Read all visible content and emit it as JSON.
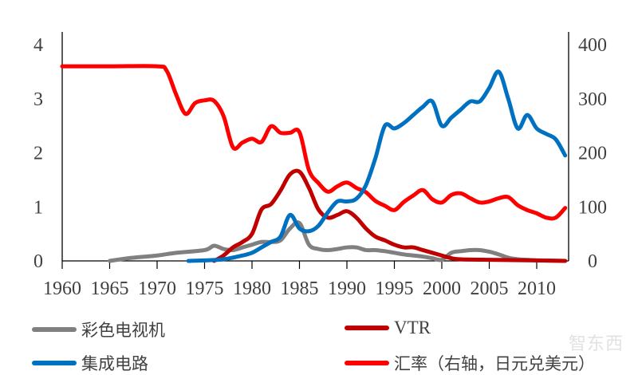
{
  "chart_data": {
    "type": "line",
    "title": "",
    "xlim": [
      1960,
      2014
    ],
    "x_ticks": [
      "1960",
      "1965",
      "1970",
      "1975",
      "1980",
      "1985",
      "1990",
      "1995",
      "2000",
      "2005",
      "2010"
    ],
    "y_left": {
      "lim": [
        0,
        4
      ],
      "ticks": [
        "0",
        "1",
        "2",
        "3",
        "4"
      ]
    },
    "y_right": {
      "lim": [
        0,
        400
      ],
      "ticks": [
        "0",
        "100",
        "200",
        "300",
        "400"
      ]
    },
    "grid": false,
    "legend_position": "bottom",
    "series": [
      {
        "name": "彩色电视机",
        "axis": "left",
        "color": "#808080",
        "x": [
          1965,
          1967,
          1970,
          1972,
          1975,
          1976,
          1977,
          1978,
          1979,
          1980,
          1981,
          1982,
          1983,
          1984,
          1985,
          1986,
          1987,
          1988,
          1989,
          1990,
          1991,
          1992,
          1993,
          1994,
          1995,
          1996,
          1997,
          1998,
          1999,
          2000,
          2001,
          2002,
          2003,
          2004,
          2005,
          2006,
          2007,
          2008,
          2009,
          2010,
          2013
        ],
        "y": [
          0,
          0.05,
          0.1,
          0.15,
          0.2,
          0.28,
          0.22,
          0.2,
          0.25,
          0.3,
          0.35,
          0.35,
          0.38,
          0.6,
          0.7,
          0.3,
          0.22,
          0.2,
          0.22,
          0.25,
          0.25,
          0.2,
          0.2,
          0.18,
          0.15,
          0.12,
          0.1,
          0.08,
          0.05,
          0.02,
          0.15,
          0.18,
          0.2,
          0.2,
          0.17,
          0.12,
          0.06,
          0.03,
          0.02,
          0.01,
          0
        ]
      },
      {
        "name": "VTR",
        "axis": "left",
        "color": "#c00000",
        "x": [
          1976,
          1977,
          1978,
          1979,
          1980,
          1981,
          1982,
          1983,
          1984,
          1985,
          1986,
          1987,
          1988,
          1989,
          1990,
          1991,
          1992,
          1993,
          1994,
          1995,
          1996,
          1997,
          1998,
          1999,
          2000,
          2001,
          2002,
          2005,
          2010,
          2013
        ],
        "y": [
          0,
          0.1,
          0.25,
          0.35,
          0.5,
          0.95,
          1.05,
          1.3,
          1.6,
          1.65,
          1.35,
          0.95,
          0.8,
          0.85,
          0.92,
          0.8,
          0.6,
          0.45,
          0.38,
          0.3,
          0.25,
          0.25,
          0.2,
          0.15,
          0.1,
          0.05,
          0.03,
          0.02,
          0.01,
          0
        ]
      },
      {
        "name": "集成电路",
        "axis": "left",
        "color": "#0070c0",
        "x": [
          1973.3,
          1975,
          1977,
          1979,
          1980,
          1981,
          1982,
          1983,
          1984,
          1985,
          1986,
          1987,
          1988,
          1989,
          1990,
          1991,
          1992,
          1993,
          1994,
          1995,
          1996,
          1997,
          1998,
          1999,
          2000,
          2001,
          2002,
          2003,
          2004,
          2005,
          2006,
          2007,
          2008,
          2009,
          2010,
          2011,
          2012,
          2013
        ],
        "y": [
          0,
          0.01,
          0.03,
          0.1,
          0.15,
          0.25,
          0.35,
          0.45,
          0.85,
          0.6,
          0.55,
          0.65,
          0.9,
          1.1,
          1.1,
          1.15,
          1.4,
          1.9,
          2.5,
          2.45,
          2.55,
          2.7,
          2.85,
          2.95,
          2.5,
          2.65,
          2.8,
          2.95,
          2.95,
          3.2,
          3.5,
          3.0,
          2.45,
          2.7,
          2.45,
          2.35,
          2.25,
          1.95
        ]
      },
      {
        "name": "汇率（右轴，日元兑美元）",
        "axis": "right",
        "color": "#ff0000",
        "x": [
          1960,
          1965,
          1970,
          1971,
          1972,
          1973,
          1974,
          1975,
          1976,
          1977,
          1978,
          1979,
          1980,
          1981,
          1982,
          1983,
          1984,
          1985,
          1986,
          1987,
          1988,
          1989,
          1990,
          1991,
          1992,
          1993,
          1994,
          1995,
          1996,
          1997,
          1998,
          1999,
          2000,
          2001,
          2002,
          2003,
          2004,
          2005,
          2006,
          2007,
          2008,
          2009,
          2010,
          2011,
          2012,
          2013
        ],
        "y": [
          360,
          360,
          360,
          352,
          308,
          272,
          292,
          297,
          296,
          268,
          210,
          219,
          226,
          220,
          249,
          237,
          237,
          238,
          168,
          144,
          128,
          138,
          145,
          135,
          127,
          111,
          102,
          94,
          109,
          121,
          131,
          114,
          108,
          122,
          125,
          116,
          108,
          110,
          116,
          118,
          103,
          94,
          88,
          80,
          80,
          98
        ]
      }
    ]
  },
  "watermark": "智东西"
}
